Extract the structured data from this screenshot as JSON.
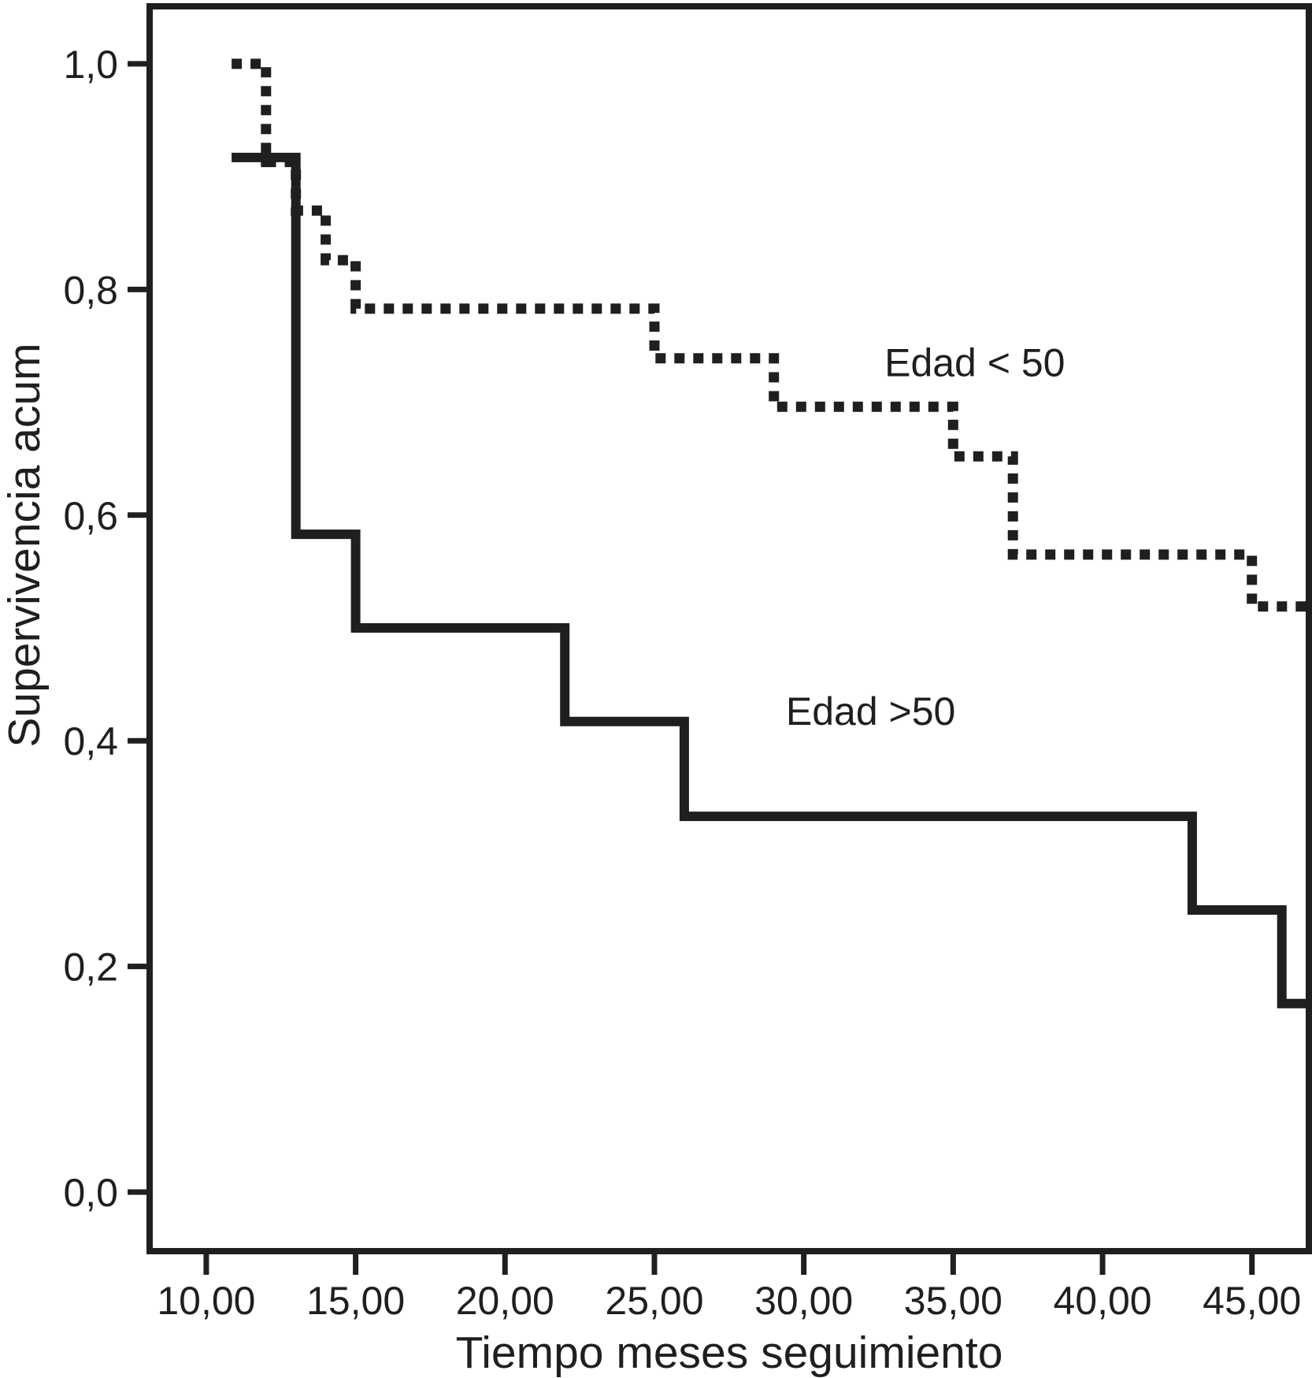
{
  "figure": {
    "background": "#ffffff",
    "line_color": "#1f1f1f"
  },
  "chart_data": {
    "type": "line",
    "subtype": "kaplan-meier-step",
    "title": "",
    "xlabel": "Tiempo meses seguimiento",
    "ylabel": "Supervivencia acum",
    "grid": false,
    "legend_position": "inline-annotations",
    "x_domain": [
      8.105,
      46.905
    ],
    "y_domain": [
      -0.0524,
      1.051
    ],
    "x_ticks": [
      {
        "value": 10,
        "label": "10,00"
      },
      {
        "value": 15,
        "label": "15,00"
      },
      {
        "value": 20,
        "label": "20,00"
      },
      {
        "value": 25,
        "label": "25,00"
      },
      {
        "value": 30,
        "label": "30,00"
      },
      {
        "value": 35,
        "label": "35,00"
      },
      {
        "value": 40,
        "label": "40,00"
      },
      {
        "value": 45,
        "label": "45,00"
      }
    ],
    "y_ticks": [
      {
        "value": 1.0,
        "label": "1,0"
      },
      {
        "value": 0.8,
        "label": "0,8"
      },
      {
        "value": 0.6,
        "label": "0,6"
      },
      {
        "value": 0.4,
        "label": "0,4"
      },
      {
        "value": 0.2,
        "label": "0,2"
      },
      {
        "value": 0.0,
        "label": "0,0"
      }
    ],
    "series": [
      {
        "name": "Edad < 50",
        "line_style": "dotted",
        "start": [
          10.85,
          1.0
        ],
        "steps": [
          [
            12,
            0.913
          ],
          [
            13,
            0.87
          ],
          [
            14,
            0.826
          ],
          [
            15,
            0.783
          ],
          [
            25,
            0.739
          ],
          [
            29,
            0.696
          ],
          [
            35,
            0.652
          ],
          [
            37,
            0.565
          ],
          [
            45,
            0.519
          ]
        ],
        "end_x": 46.9
      },
      {
        "name": "Edad >50",
        "line_style": "solid",
        "start": [
          10.85,
          0.917
        ],
        "steps": [
          [
            13,
            0.583
          ],
          [
            15,
            0.5
          ],
          [
            22,
            0.417
          ],
          [
            26,
            0.333
          ],
          [
            43,
            0.25
          ],
          [
            46,
            0.167
          ]
        ],
        "end_x": 46.9
      }
    ],
    "annotations": [
      {
        "text": "Edad < 50",
        "x": 32.7,
        "y": 0.723,
        "series": "Edad < 50"
      },
      {
        "text": "Edad >50",
        "x": 29.4,
        "y": 0.414,
        "series": "Edad >50"
      }
    ]
  }
}
